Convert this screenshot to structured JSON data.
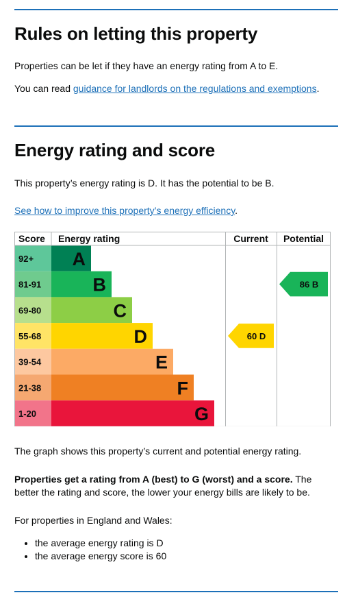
{
  "letting": {
    "heading": "Rules on letting this property",
    "para1": "Properties can be let if they have an energy rating from A to E.",
    "para2_prefix": "You can read ",
    "para2_link": "guidance for landlords on the regulations and exemptions",
    "para2_suffix": "."
  },
  "energy": {
    "heading": "Energy rating and score",
    "rating_text": "This property’s energy rating is D. It has the potential to be B.",
    "improve_link": "See how to improve this property’s energy efficiency",
    "improve_suffix": "."
  },
  "chart_data": {
    "type": "bar",
    "headers": {
      "score": "Score",
      "rating": "Energy rating",
      "current": "Current",
      "potential": "Potential"
    },
    "bands": [
      {
        "letter": "A",
        "range": "92+",
        "color": "#008054"
      },
      {
        "letter": "B",
        "range": "81-91",
        "color": "#19b459"
      },
      {
        "letter": "C",
        "range": "69-80",
        "color": "#8dce46"
      },
      {
        "letter": "D",
        "range": "55-68",
        "color": "#ffd500"
      },
      {
        "letter": "E",
        "range": "39-54",
        "color": "#fcaa65"
      },
      {
        "letter": "F",
        "range": "21-38",
        "color": "#ef8023"
      },
      {
        "letter": "G",
        "range": "1-20",
        "color": "#e9153b"
      }
    ],
    "current": {
      "score": 60,
      "band": "D",
      "label": "60  D",
      "color": "#ffd500"
    },
    "potential": {
      "score": 86,
      "band": "B",
      "label": "86  B",
      "color": "#19b459"
    }
  },
  "explain": {
    "graph_note": "The graph shows this property’s current and potential energy rating.",
    "bold": "Properties get a rating from A (best) to G (worst) and a score.",
    "rest": " The better the rating and score, the lower your energy bills are likely to be.",
    "regions": "For properties in England and Wales:",
    "averages": [
      "the average energy rating is D",
      "the average energy score is 60"
    ]
  }
}
